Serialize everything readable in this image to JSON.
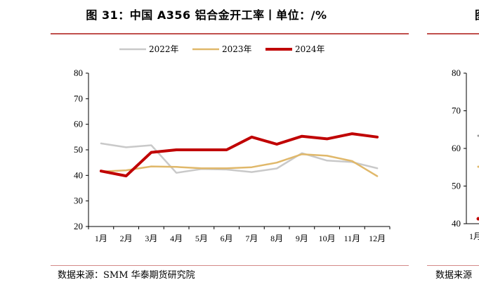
{
  "title": "图 31：中国 A356 铝合金开工率丨单位：/%",
  "source": "数据来源：SMM 华泰期货研究院",
  "chart_data": {
    "type": "line",
    "title": "图 31：中国 A356 铝合金开工率丨单位：/%",
    "categories": [
      "1月",
      "2月",
      "3月",
      "4月",
      "5月",
      "6月",
      "7月",
      "8月",
      "9月",
      "10月",
      "11月",
      "12月"
    ],
    "ylim": [
      20,
      80
    ],
    "yticks": [
      "20",
      "30",
      "40",
      "50",
      "60",
      "70",
      "80"
    ],
    "grid": false,
    "legend": "top",
    "series": [
      {
        "name": "2022年",
        "color": "#c9c9c9",
        "width": 2.5,
        "values": [
          52.5,
          51.0,
          51.8,
          41.0,
          42.5,
          42.3,
          41.3,
          42.7,
          48.7,
          45.8,
          45.2,
          42.8
        ]
      },
      {
        "name": "2023年",
        "color": "#e0b86a",
        "width": 2.5,
        "values": [
          41.5,
          42.0,
          43.5,
          43.3,
          42.8,
          42.8,
          43.2,
          45.0,
          48.3,
          47.7,
          45.6,
          39.7
        ]
      },
      {
        "name": "2024年",
        "color": "#c00000",
        "width": 4,
        "values": [
          41.7,
          39.8,
          49.0,
          50.0,
          50.0,
          50.0,
          55.0,
          52.2,
          55.3,
          54.3,
          56.3,
          55.0
        ]
      }
    ]
  },
  "partial_panel": {
    "title_fragment": "图",
    "source_fragment": "数据来源",
    "yticks": [
      "40",
      "50",
      "60",
      "70",
      "80"
    ],
    "first_category": "1月"
  }
}
